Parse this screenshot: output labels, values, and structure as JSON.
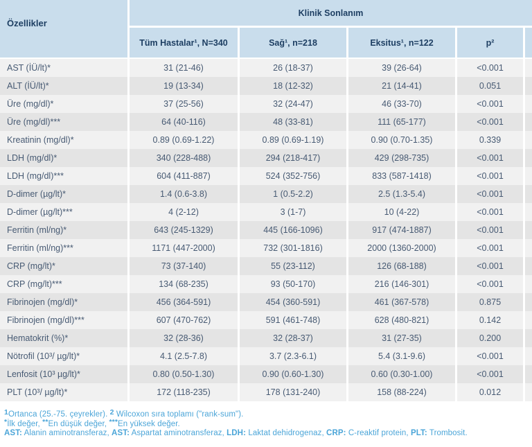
{
  "table": {
    "corner_header": "Özellikler",
    "group_header": "Klinik Sonlanım",
    "columns": [
      "Tüm Hastalar¹, N=340",
      "Sağ¹, n=218",
      "Eksitus¹, n=122",
      "p²"
    ],
    "rows": [
      {
        "label": "AST (İÜ/lt)*",
        "values": [
          "31 (21-46)",
          "26 (18-37)",
          "39 (26-64)",
          "<0.001"
        ]
      },
      {
        "label": "ALT (İÜ/lt)*",
        "values": [
          "19 (13-34)",
          "18 (12-32)",
          "21 (14-41)",
          "0.051"
        ]
      },
      {
        "label": "Üre (mg/dl)*",
        "values": [
          "37 (25-56)",
          "32 (24-47)",
          "46 (33-70)",
          "<0.001"
        ]
      },
      {
        "label": "Üre (mg/dl)***",
        "values": [
          "64 (40-116)",
          "48 (33-81)",
          "111 (65-177)",
          "<0.001"
        ]
      },
      {
        "label": "Kreatinin (mg/dl)*",
        "values": [
          "0.89 (0.69-1.22)",
          "0.89 (0.69-1.19)",
          "0.90 (0.70-1.35)",
          "0.339"
        ]
      },
      {
        "label": "LDH (mg/dl)*",
        "values": [
          "340 (228-488)",
          "294 (218-417)",
          "429 (298-735)",
          "<0.001"
        ]
      },
      {
        "label": "LDH (mg/dl)***",
        "values": [
          "604 (411-887)",
          "524 (352-756)",
          "833 (587-1418)",
          "<0.001"
        ]
      },
      {
        "label": "D-dimer (µg/lt)*",
        "values": [
          "1.4 (0.6-3.8)",
          "1 (0.5-2.2)",
          "2.5 (1.3-5.4)",
          "<0.001"
        ]
      },
      {
        "label": "D-dimer (µg/lt)***",
        "values": [
          "4 (2-12)",
          "3 (1-7)",
          "10 (4-22)",
          "<0.001"
        ]
      },
      {
        "label": "Ferritin (ml/ng)*",
        "values": [
          "643 (245-1329)",
          "445 (166-1096)",
          "917 (474-1887)",
          "<0.001"
        ]
      },
      {
        "label": "Ferritin (ml/ng)***",
        "values": [
          "1171 (447-2000)",
          "732 (301-1816)",
          "2000 (1360-2000)",
          "<0.001"
        ]
      },
      {
        "label": "CRP (mg/lt)*",
        "values": [
          "73 (37-140)",
          "55 (23-112)",
          "126 (68-188)",
          "<0.001"
        ]
      },
      {
        "label": "CRP (mg/lt)***",
        "values": [
          "134 (68-235)",
          "93 (50-170)",
          "216 (146-301)",
          "<0.001"
        ]
      },
      {
        "label": "Fibrinojen (mg/dl)*",
        "values": [
          "456 (364-591)",
          "454 (360-591)",
          "461 (367-578)",
          "0.875"
        ]
      },
      {
        "label": "Fibrinojen (mg/dl)***",
        "values": [
          "607 (470-762)",
          "591 (461-748)",
          "628 (480-821)",
          "0.142"
        ]
      },
      {
        "label": "Hematokrit (%)*",
        "values": [
          "32 (28-36)",
          "32 (28-37)",
          "31 (27-35)",
          "0.200"
        ]
      },
      {
        "label": "Nötrofil (10³/ µg/lt)*",
        "values": [
          "4.1 (2.5-7.8)",
          "3.7 (2.3-6.1)",
          "5.4 (3.1-9.6)",
          "<0.001"
        ]
      },
      {
        "label": "Lenfosit (10³ µg/lt)*",
        "values": [
          "0.80 (0.50-1.30)",
          "0.90 (0.60-1.30)",
          "0.60 (0.30-1.00)",
          "<0.001"
        ]
      },
      {
        "label": "PLT (10³/ µg/lt)*",
        "values": [
          "172 (118-235)",
          "178 (131-240)",
          "158 (88-224)",
          "0.012"
        ]
      }
    ]
  },
  "footnotes": {
    "lines": [
      [
        {
          "t": "1",
          "b": true,
          "sup": true
        },
        {
          "t": "Ortanca (25.-75. çeyrekler). ",
          "b": false
        },
        {
          "t": "2",
          "b": true,
          "sup": true
        },
        {
          "t": " Wilcoxon sıra toplamı (\"rank-sum\").",
          "b": false
        }
      ],
      [
        {
          "t": "*",
          "b": true,
          "sup": true
        },
        {
          "t": "İlk değer, ",
          "b": false
        },
        {
          "t": "**",
          "b": true,
          "sup": true
        },
        {
          "t": "En düşük değer, ",
          "b": false
        },
        {
          "t": "***",
          "b": true,
          "sup": true
        },
        {
          "t": "En yüksek değer.",
          "b": false
        }
      ],
      [
        {
          "t": "AST:",
          "b": true
        },
        {
          "t": " Alanin aminotransferaz, ",
          "b": false
        },
        {
          "t": "AST:",
          "b": true
        },
        {
          "t": " Aspartat aminotransferaz, ",
          "b": false
        },
        {
          "t": "LDH:",
          "b": true
        },
        {
          "t": " Laktat dehidrogenaz, ",
          "b": false
        },
        {
          "t": "CRP:",
          "b": true
        },
        {
          "t": " C-reaktif protein, ",
          "b": false
        },
        {
          "t": "PLT:",
          "b": true
        },
        {
          "t": " Trombosit.",
          "b": false
        }
      ]
    ]
  },
  "colors": {
    "header_background": "#c9ddec",
    "header_text": "#1e3f63",
    "row_light": "#f1f1f1",
    "row_dark": "#e4e4e4",
    "body_text": "#475a73",
    "footnote_text": "#4ba5d8",
    "separator": "#ffffff"
  }
}
